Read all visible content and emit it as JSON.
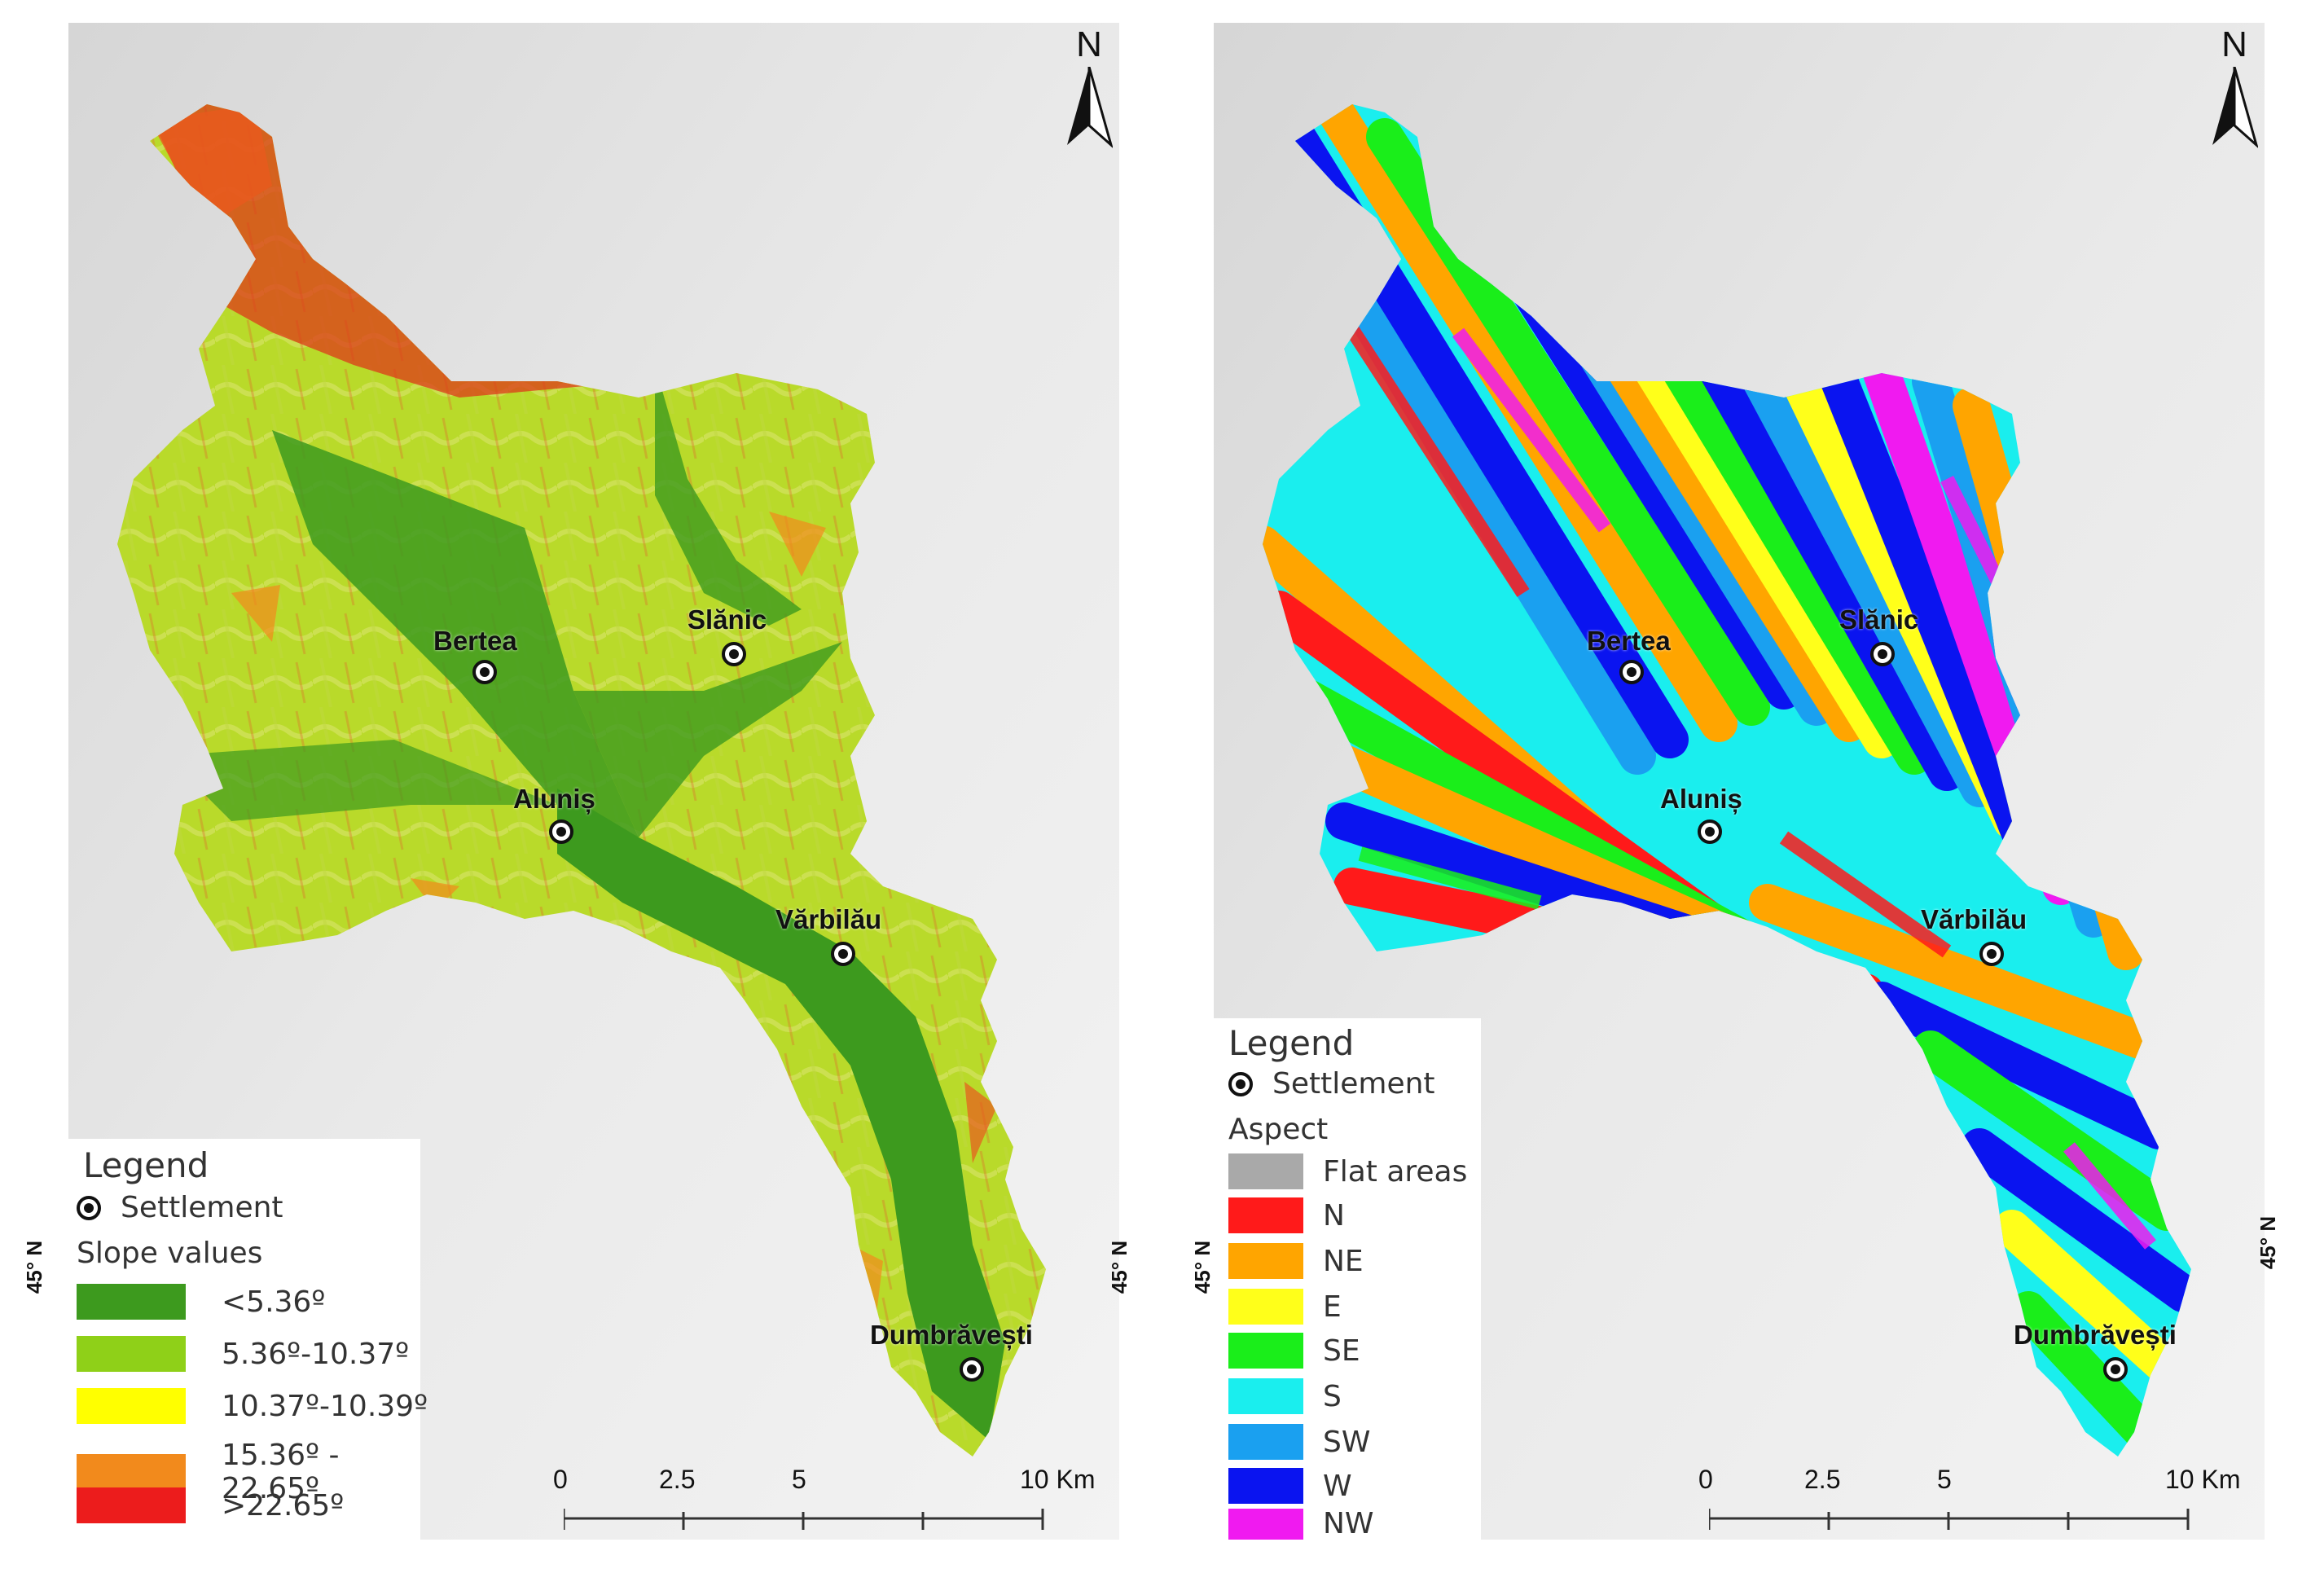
{
  "left_map": {
    "north_label": "N",
    "lat_label_left": "45° N",
    "lat_label_right": "45° N",
    "places": [
      {
        "name": "Bertea"
      },
      {
        "name": "Slănic"
      },
      {
        "name": "Aluniș"
      },
      {
        "name": "Vărbilău"
      },
      {
        "name": "Dumbrăvești"
      }
    ],
    "legend": {
      "title": "Legend",
      "settlement_label": "Settlement",
      "section_title": "Slope values",
      "classes": [
        {
          "label": "<5.36º",
          "color": "#3d9a1e"
        },
        {
          "label": "5.36º-10.37º",
          "color": "#8fd018"
        },
        {
          "label": "10.37º-10.39º",
          "color": "#ffff00"
        },
        {
          "label": "15.36º - 22.65º",
          "color": "#f28a1c"
        },
        {
          "label": ">22.65º",
          "color": "#ec1c1c"
        }
      ]
    },
    "scale": {
      "labels": [
        "0",
        "2.5",
        "5",
        "10 Km"
      ]
    }
  },
  "right_map": {
    "north_label": "N",
    "lat_label_left": "45° N",
    "lat_label_right": "45° N",
    "places": [
      {
        "name": "Bertea"
      },
      {
        "name": "Slănic"
      },
      {
        "name": "Aluniș"
      },
      {
        "name": "Vărbilău"
      },
      {
        "name": "Dumbrăvești"
      }
    ],
    "legend": {
      "title": "Legend",
      "settlement_label": "Settlement",
      "section_title": "Aspect",
      "classes": [
        {
          "label": "Flat areas",
          "color": "#a9a9a9"
        },
        {
          "label": "N",
          "color": "#ff1a1a"
        },
        {
          "label": "NE",
          "color": "#ffa500"
        },
        {
          "label": "E",
          "color": "#ffff1a"
        },
        {
          "label": "SE",
          "color": "#1aee1a"
        },
        {
          "label": "S",
          "color": "#1aeeee"
        },
        {
          "label": "SW",
          "color": "#1aa0f0"
        },
        {
          "label": "W",
          "color": "#0a14f0"
        },
        {
          "label": "NW",
          "color": "#f01af0"
        }
      ]
    },
    "scale": {
      "labels": [
        "0",
        "2.5",
        "5",
        "10 Km"
      ]
    }
  }
}
